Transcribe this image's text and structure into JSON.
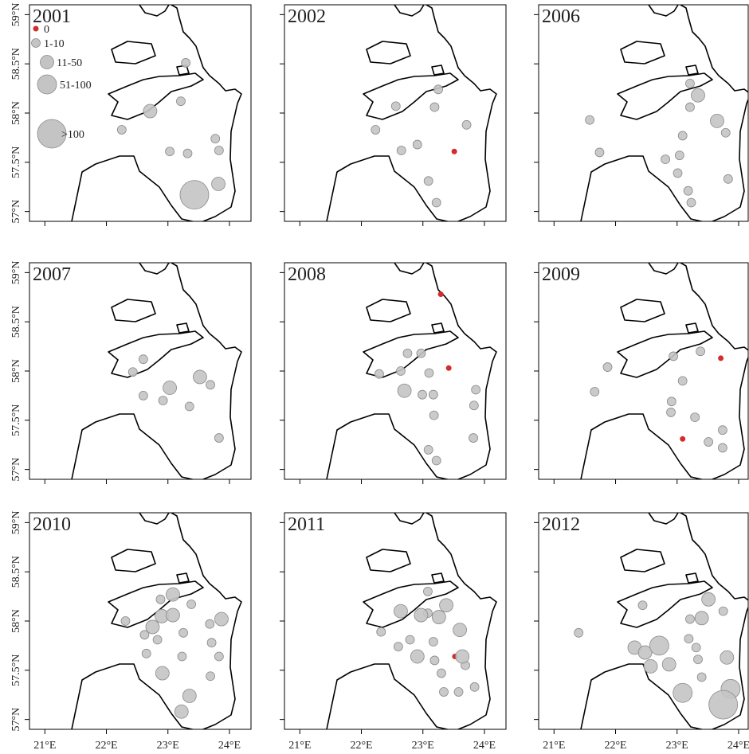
{
  "axes": {
    "xlim": [
      20.75,
      24.35
    ],
    "ylim": [
      56.9,
      59.1
    ],
    "xticks": [
      {
        "value": 21,
        "label": "21°E"
      },
      {
        "value": 22,
        "label": "22°E"
      },
      {
        "value": 23,
        "label": "23°E"
      },
      {
        "value": 24,
        "label": "24°E"
      }
    ],
    "yticks": [
      {
        "value": 57,
        "label": "57°N"
      },
      {
        "value": 57.5,
        "label": "57.5°N"
      },
      {
        "value": 58,
        "label": "58°N"
      },
      {
        "value": 58.5,
        "label": "58.5°N"
      },
      {
        "value": 59,
        "label": "59°N"
      }
    ]
  },
  "legend": {
    "labels": [
      "0",
      "1-10",
      "11-50",
      "51-100",
      ">100"
    ],
    "colors": [
      "#d42b2b",
      "#c4c4c4",
      "#c4c4c4",
      "#c4c4c4",
      "#c4c4c4"
    ]
  },
  "chart_data": [
    {
      "type": "scatter",
      "title": "2001",
      "series": [
        {
          "x": [],
          "values": []
        },
        {
          "x": [
            22.25,
            23.29,
            23.21,
            23.03,
            23.32,
            23.77,
            23.83
          ],
          "values": [
            57.83,
            58.51,
            58.12,
            57.61,
            57.59,
            57.74,
            57.62
          ]
        },
        {
          "x": [
            22.71,
            23.82
          ],
          "values": [
            58.02,
            57.28
          ]
        },
        {
          "x": [],
          "values": []
        },
        {
          "x": [
            23.43
          ],
          "values": [
            57.17
          ]
        }
      ]
    },
    {
      "type": "scatter",
      "title": "2002",
      "series": [
        {
          "x": [
            23.51
          ],
          "values": [
            57.61
          ]
        },
        {
          "x": [
            22.23,
            22.56,
            23.25,
            23.19,
            23.71,
            22.65,
            22.91,
            23.09,
            23.22
          ],
          "values": [
            57.83,
            58.07,
            58.24,
            58.06,
            57.88,
            57.62,
            57.68,
            57.31,
            57.09
          ]
        },
        {
          "x": [],
          "values": []
        },
        {
          "x": [],
          "values": []
        },
        {
          "x": [],
          "values": []
        }
      ]
    },
    {
      "type": "scatter",
      "title": "2006",
      "series": [
        {
          "x": [],
          "values": []
        },
        {
          "x": [
            21.58,
            21.74,
            22.81,
            23.04,
            23.01,
            23.09,
            23.21,
            23.18,
            23.23,
            23.79,
            23.83,
            23.21
          ],
          "values": [
            57.93,
            57.6,
            57.53,
            57.57,
            57.39,
            57.77,
            58.06,
            57.21,
            57.09,
            57.8,
            57.33,
            58.3
          ]
        },
        {
          "x": [
            23.34,
            23.65
          ],
          "values": [
            58.18,
            57.92
          ]
        },
        {
          "x": [],
          "values": []
        },
        {
          "x": [],
          "values": []
        }
      ]
    },
    {
      "type": "scatter",
      "title": "2007",
      "series": [
        {
          "x": [],
          "values": []
        },
        {
          "x": [
            22.6,
            22.43,
            22.6,
            22.92,
            23.35,
            23.69,
            23.83
          ],
          "values": [
            58.12,
            57.99,
            57.75,
            57.7,
            57.64,
            57.86,
            57.32
          ]
        },
        {
          "x": [
            23.03,
            23.52
          ],
          "values": [
            57.83,
            57.94
          ]
        },
        {
          "x": [],
          "values": []
        },
        {
          "x": [],
          "values": []
        }
      ]
    },
    {
      "type": "scatter",
      "title": "2008",
      "series": [
        {
          "x": [
            23.29,
            23.42
          ],
          "values": [
            58.78,
            58.03
          ]
        },
        {
          "x": [
            22.29,
            22.64,
            22.75,
            22.97,
            23.1,
            23.17,
            23.18,
            22.99,
            23.86,
            23.83,
            23.82,
            23.09,
            23.22
          ],
          "values": [
            57.97,
            58.0,
            58.18,
            58.18,
            57.98,
            57.76,
            57.55,
            57.76,
            57.81,
            57.65,
            57.32,
            57.2,
            57.09
          ]
        },
        {
          "x": [
            22.7
          ],
          "values": [
            57.8
          ]
        },
        {
          "x": [],
          "values": []
        },
        {
          "x": [],
          "values": []
        }
      ]
    },
    {
      "type": "scatter",
      "title": "2009",
      "series": [
        {
          "x": [
            23.71,
            23.09
          ],
          "values": [
            58.13,
            57.31
          ]
        },
        {
          "x": [
            21.87,
            21.66,
            22.94,
            23.38,
            23.09,
            22.91,
            22.9,
            23.29,
            23.51,
            23.74,
            23.74
          ],
          "values": [
            58.04,
            57.79,
            58.15,
            58.2,
            57.9,
            57.69,
            57.58,
            57.53,
            57.28,
            57.4,
            57.22
          ]
        },
        {
          "x": [],
          "values": []
        },
        {
          "x": [],
          "values": []
        },
        {
          "x": [],
          "values": []
        }
      ]
    },
    {
      "type": "scatter",
      "title": "2010",
      "series": [
        {
          "x": [],
          "values": []
        },
        {
          "x": [
            22.31,
            22.88,
            22.62,
            22.83,
            22.65,
            23.23,
            23.38,
            23.25,
            23.68,
            23.71,
            23.83,
            23.69
          ],
          "values": [
            58.0,
            58.22,
            57.86,
            57.81,
            57.67,
            57.64,
            58.17,
            57.88,
            57.97,
            57.78,
            57.64,
            57.44
          ]
        },
        {
          "x": [
            22.75,
            22.9,
            23.08,
            23.08,
            23.87,
            22.91,
            23.35,
            23.22
          ],
          "values": [
            57.94,
            58.05,
            58.27,
            58.06,
            58.02,
            57.47,
            57.24,
            57.08
          ]
        },
        {
          "x": [],
          "values": []
        },
        {
          "x": [],
          "values": []
        }
      ]
    },
    {
      "type": "scatter",
      "title": "2011",
      "series": [
        {
          "x": [
            23.52
          ],
          "values": [
            57.64
          ]
        },
        {
          "x": [
            22.32,
            23.08,
            22.79,
            23.17,
            23.19,
            23.3,
            23.34,
            23.58,
            23.84,
            23.69,
            23.08,
            22.6
          ],
          "values": [
            57.89,
            58.08,
            57.81,
            57.79,
            57.6,
            57.47,
            57.28,
            57.28,
            57.33,
            57.55,
            58.3,
            57.74
          ]
        },
        {
          "x": [
            22.64,
            22.97,
            23.26,
            23.38,
            23.6,
            22.91,
            23.64
          ],
          "values": [
            58.1,
            58.06,
            58.04,
            58.16,
            57.91,
            57.64,
            57.64
          ]
        },
        {
          "x": [],
          "values": []
        },
        {
          "x": [],
          "values": []
        }
      ]
    },
    {
      "type": "scatter",
      "title": "2012",
      "series": [
        {
          "x": [],
          "values": []
        },
        {
          "x": [
            21.4,
            22.44,
            23.21,
            23.75,
            23.31,
            23.4,
            23.34,
            23.19
          ],
          "values": [
            57.88,
            58.16,
            58.02,
            58.1,
            57.73,
            57.43,
            57.61,
            57.82
          ]
        },
        {
          "x": [
            22.31,
            22.48,
            22.57,
            22.87,
            23.51,
            23.4,
            23.81
          ],
          "values": [
            57.73,
            57.68,
            57.54,
            57.56,
            58.22,
            58.03,
            57.63
          ]
        },
        {
          "x": [
            22.71,
            23.09,
            23.87
          ],
          "values": [
            57.75,
            57.27,
            57.31
          ]
        },
        {
          "x": [
            23.75
          ],
          "values": [
            57.15
          ]
        }
      ]
    }
  ]
}
